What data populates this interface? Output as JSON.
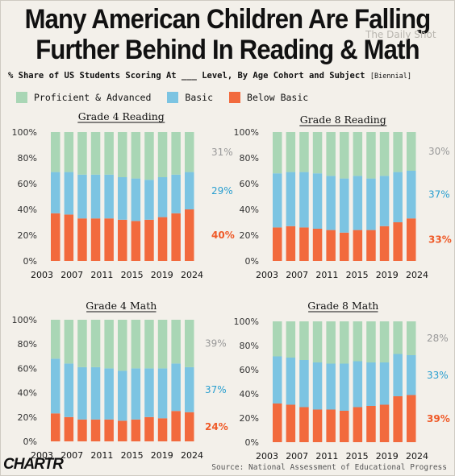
{
  "header": {
    "title_line1": "Many American Children Are Falling",
    "title_line2": "Further Behind In Reading & Math",
    "subtitle": "% Share of US Students Scoring At ___ Level, By Age Cohort and Subject",
    "subtitle_note": "[Biennial]",
    "watermark": "The Daily Shot"
  },
  "legend": [
    {
      "label": "Proficient & Advanced",
      "color": "#a9d6b5"
    },
    {
      "label": "Basic",
      "color": "#7cc4e2"
    },
    {
      "label": "Below Basic",
      "color": "#f26a3d"
    }
  ],
  "colors": {
    "proficient": "#a9d6b5",
    "basic": "#7cc4e2",
    "below": "#f26a3d",
    "proficient_label": "#999999",
    "basic_label": "#2a9fd0",
    "below_label": "#ef5a28"
  },
  "footer": {
    "logo": "CHARTR",
    "source": "Source: National Assessment of Educational Progress"
  },
  "chart_data": [
    {
      "type": "bar",
      "stacked": true,
      "title": "Grade 4 Reading",
      "categories": [
        "2003",
        "2005",
        "2007",
        "2009",
        "2011",
        "2013",
        "2015",
        "2017",
        "2019",
        "2022",
        "2024"
      ],
      "x_tick_labels": [
        "2003",
        "2007",
        "2011",
        "2015",
        "2019",
        "2024"
      ],
      "ylim": [
        0,
        100
      ],
      "y_ticks": [
        "0%",
        "20%",
        "40%",
        "60%",
        "80%",
        "100%"
      ],
      "series": [
        {
          "name": "Below Basic",
          "values": [
            37,
            36,
            33,
            33,
            33,
            32,
            31,
            32,
            34,
            37,
            40
          ]
        },
        {
          "name": "Basic",
          "values": [
            32,
            33,
            34,
            34,
            34,
            33,
            33,
            31,
            31,
            30,
            29
          ]
        },
        {
          "name": "Proficient & Advanced",
          "values": [
            31,
            31,
            33,
            33,
            33,
            35,
            36,
            37,
            35,
            33,
            31
          ]
        }
      ],
      "end_labels": [
        "31%",
        "29%",
        "40%"
      ]
    },
    {
      "type": "bar",
      "stacked": true,
      "title": "Grade 8 Reading",
      "categories": [
        "2003",
        "2005",
        "2007",
        "2009",
        "2011",
        "2013",
        "2015",
        "2017",
        "2019",
        "2022",
        "2024"
      ],
      "x_tick_labels": [
        "2003",
        "2007",
        "2011",
        "2015",
        "2019",
        "2024"
      ],
      "ylim": [
        0,
        100
      ],
      "y_ticks": [
        "0%",
        "20%",
        "40%",
        "60%",
        "80%",
        "100%"
      ],
      "series": [
        {
          "name": "Below Basic",
          "values": [
            26,
            27,
            26,
            25,
            24,
            22,
            24,
            24,
            27,
            30,
            33
          ]
        },
        {
          "name": "Basic",
          "values": [
            42,
            42,
            43,
            43,
            42,
            42,
            42,
            40,
            39,
            39,
            37
          ]
        },
        {
          "name": "Proficient & Advanced",
          "values": [
            32,
            31,
            31,
            32,
            34,
            36,
            34,
            36,
            34,
            31,
            30
          ]
        }
      ],
      "end_labels": [
        "30%",
        "37%",
        "33%"
      ]
    },
    {
      "type": "bar",
      "stacked": true,
      "title": "Grade 4 Math",
      "categories": [
        "2003",
        "2005",
        "2007",
        "2009",
        "2011",
        "2013",
        "2015",
        "2017",
        "2019",
        "2022",
        "2024"
      ],
      "x_tick_labels": [
        "2003",
        "2007",
        "2011",
        "2015",
        "2019",
        "2024"
      ],
      "ylim": [
        0,
        100
      ],
      "y_ticks": [
        "0%",
        "20%",
        "40%",
        "60%",
        "80%",
        "100%"
      ],
      "series": [
        {
          "name": "Below Basic",
          "values": [
            23,
            20,
            18,
            18,
            18,
            17,
            18,
            20,
            19,
            25,
            24
          ]
        },
        {
          "name": "Basic",
          "values": [
            45,
            44,
            43,
            43,
            42,
            41,
            42,
            40,
            41,
            39,
            37
          ]
        },
        {
          "name": "Proficient & Advanced",
          "values": [
            32,
            36,
            39,
            39,
            40,
            42,
            40,
            40,
            40,
            36,
            39
          ]
        }
      ],
      "end_labels": [
        "39%",
        "37%",
        "24%"
      ]
    },
    {
      "type": "bar",
      "stacked": true,
      "title": "Grade 8 Math",
      "categories": [
        "2003",
        "2005",
        "2007",
        "2009",
        "2011",
        "2013",
        "2015",
        "2017",
        "2019",
        "2022",
        "2024"
      ],
      "x_tick_labels": [
        "2003",
        "2007",
        "2011",
        "2015",
        "2019",
        "2024"
      ],
      "ylim": [
        0,
        100
      ],
      "y_ticks": [
        "0%",
        "20%",
        "40%",
        "60%",
        "80%",
        "100%"
      ],
      "series": [
        {
          "name": "Below Basic",
          "values": [
            32,
            31,
            29,
            27,
            27,
            26,
            29,
            30,
            31,
            38,
            39
          ]
        },
        {
          "name": "Basic",
          "values": [
            39,
            39,
            39,
            39,
            38,
            39,
            38,
            36,
            35,
            35,
            33
          ]
        },
        {
          "name": "Proficient & Advanced",
          "values": [
            29,
            30,
            32,
            34,
            35,
            35,
            33,
            34,
            34,
            27,
            28
          ]
        }
      ],
      "end_labels": [
        "28%",
        "33%",
        "39%"
      ]
    }
  ]
}
